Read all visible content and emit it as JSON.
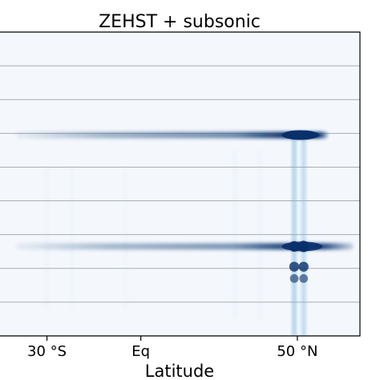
{
  "chart_data": {
    "type": "heatmap",
    "title": "ZEHST + subsonic",
    "xlabel": "Latitude",
    "ylabel": "",
    "xlim": [
      -45,
      70
    ],
    "ylim": [
      0,
      9
    ],
    "x_ticks": [
      {
        "value": -30,
        "label": "30 °S"
      },
      {
        "value": 0,
        "label": "Eq"
      },
      {
        "value": 50,
        "label": "50 °N"
      }
    ],
    "y_gridlines": [
      1,
      2,
      3,
      4,
      5,
      6,
      7,
      8
    ],
    "grid": "horizontal",
    "colormap": "Blues",
    "colors": {
      "background": "#f4f8fd",
      "low": "#c6dbef",
      "mid": "#6aaed6",
      "high": "#08306b",
      "grid": "#a7acb1"
    },
    "bands": [
      {
        "y": 5.95,
        "x_start": -40,
        "x_end": 60,
        "peak_start": 45,
        "peak_end": 57,
        "max_intensity": 1.0
      },
      {
        "y": 2.65,
        "x_start": -40,
        "x_end": 68,
        "peak_start": 45,
        "peak_end": 58,
        "max_intensity": 0.9
      }
    ],
    "hotspots": [
      {
        "x": 49,
        "y": 2.65,
        "intensity": 0.9
      },
      {
        "x": 52,
        "y": 2.65,
        "intensity": 1.0
      },
      {
        "x": 49,
        "y": 2.05,
        "intensity": 0.8
      },
      {
        "x": 52,
        "y": 2.05,
        "intensity": 0.8
      },
      {
        "x": 49,
        "y": 1.7,
        "intensity": 0.6
      },
      {
        "x": 52,
        "y": 1.7,
        "intensity": 0.6
      }
    ],
    "streaks": [
      {
        "x": 49,
        "y_start": 0,
        "y_end": 6.0,
        "intensity": 0.55
      },
      {
        "x": 52,
        "y_start": 0,
        "y_end": 6.0,
        "intensity": 0.45
      },
      {
        "x": -30,
        "y_start": 0.8,
        "y_end": 5.0,
        "intensity": 0.12
      },
      {
        "x": -22,
        "y_start": 0.8,
        "y_end": 5.0,
        "intensity": 0.1
      },
      {
        "x": -5,
        "y_start": 0.8,
        "y_end": 5.0,
        "intensity": 0.1
      },
      {
        "x": 30,
        "y_start": 0.5,
        "y_end": 5.5,
        "intensity": 0.18
      },
      {
        "x": 38,
        "y_start": 0.5,
        "y_end": 5.5,
        "intensity": 0.15
      }
    ]
  }
}
